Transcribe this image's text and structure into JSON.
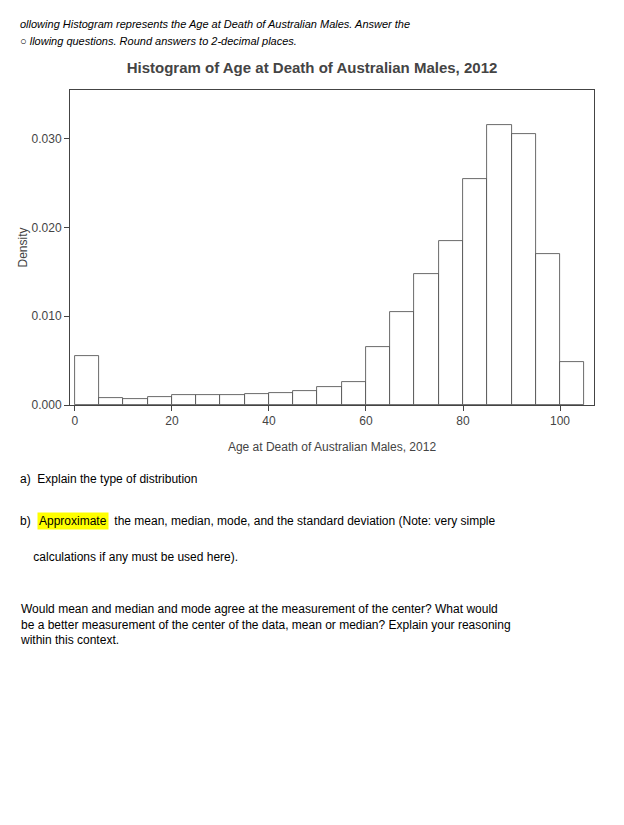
{
  "chart_data": {
    "type": "histogram",
    "title": "Histogram of Age at Death of Australian Males, 2012",
    "xlabel": "Age at Death of Australian Males, 2012",
    "ylabel": "Density",
    "bins": [
      0,
      5,
      10,
      15,
      20,
      25,
      30,
      35,
      40,
      45,
      50,
      55,
      60,
      65,
      70,
      75,
      80,
      85,
      90,
      95,
      100,
      105
    ],
    "values": [
      0.0055,
      0.0008,
      0.0007,
      0.0009,
      0.0011,
      0.0011,
      0.0011,
      0.0012,
      0.0014,
      0.0016,
      0.002,
      0.0026,
      0.0065,
      0.0105,
      0.0148,
      0.0185,
      0.0255,
      0.0315,
      0.0305,
      0.017,
      0.0048
    ],
    "color": "white",
    "xlim": [
      -1,
      107
    ],
    "xticks": [
      0,
      20,
      40,
      60,
      80,
      100
    ],
    "ylim": [
      0,
      0.0355
    ],
    "yticks": [
      {
        "value": 0,
        "label": "0.000"
      },
      {
        "value": 0.01,
        "label": "0.010"
      },
      {
        "value": 0.02,
        "label": "0.020"
      },
      {
        "value": 0.03,
        "label": "0.030"
      }
    ],
    "grid": false,
    "annotations": [
      "ollowing Histogram represents the Age at Death of Australian Males. Answer the",
      "○ llowing questions. Round answers to 2-decimal places.",
      "a)  Explain the type of distribution",
      "b)  ",
      "Approximate",
      " the mean, median, mode, and the standard deviation (Note: very simple",
      "    calculations if any must be used here).",
      "Would mean and median and mode agree at the measurement of the center? What would\nbe a better measurement of the center of the data, mean or median? Explain your reasoning\nwithin this context."
    ]
  }
}
